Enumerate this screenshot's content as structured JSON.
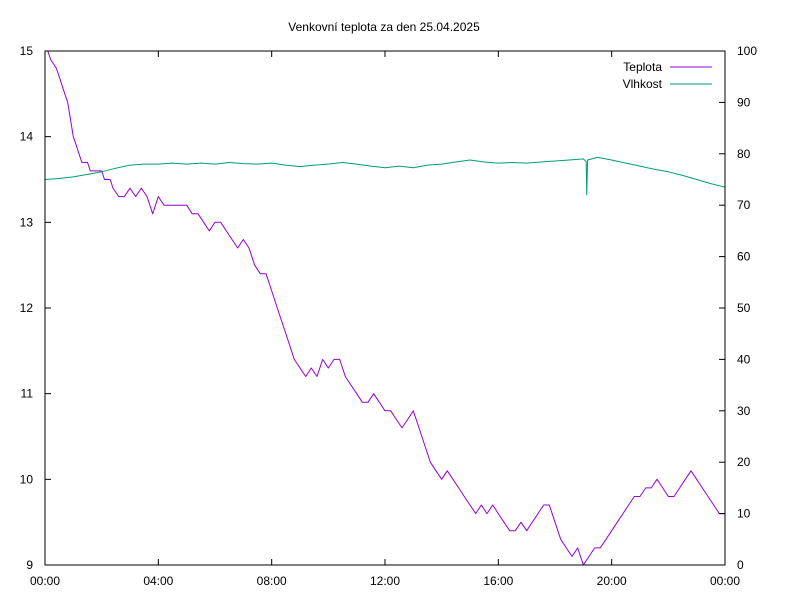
{
  "chart_data": {
    "type": "line",
    "title": "Venkovní teplota za den 25.04.2025",
    "x_ticks": [
      "00:00",
      "04:00",
      "08:00",
      "12:00",
      "16:00",
      "20:00",
      "00:00"
    ],
    "x_range_hours": [
      0,
      24
    ],
    "y_left": {
      "range": [
        9,
        15
      ],
      "ticks": [
        "9",
        "10",
        "11",
        "12",
        "13",
        "14",
        "15"
      ]
    },
    "y_right": {
      "range": [
        0,
        100
      ],
      "ticks": [
        "0",
        "10",
        "20",
        "30",
        "40",
        "50",
        "60",
        "70",
        "80",
        "90",
        "100"
      ]
    },
    "grid": false,
    "legend_position": "top-right",
    "series": [
      {
        "name": "Teplota",
        "axis": "left",
        "color": "#9400d3",
        "points": [
          [
            0.0,
            15.0
          ],
          [
            0.1,
            15.0
          ],
          [
            0.2,
            14.9
          ],
          [
            0.4,
            14.8
          ],
          [
            0.5,
            14.7
          ],
          [
            0.6,
            14.6
          ],
          [
            0.7,
            14.5
          ],
          [
            0.8,
            14.4
          ],
          [
            0.9,
            14.2
          ],
          [
            1.0,
            14.0
          ],
          [
            1.1,
            13.9
          ],
          [
            1.2,
            13.8
          ],
          [
            1.3,
            13.7
          ],
          [
            1.5,
            13.7
          ],
          [
            1.6,
            13.6
          ],
          [
            1.8,
            13.6
          ],
          [
            2.0,
            13.6
          ],
          [
            2.1,
            13.5
          ],
          [
            2.3,
            13.5
          ],
          [
            2.4,
            13.4
          ],
          [
            2.6,
            13.3
          ],
          [
            2.8,
            13.3
          ],
          [
            3.0,
            13.4
          ],
          [
            3.2,
            13.3
          ],
          [
            3.4,
            13.4
          ],
          [
            3.6,
            13.3
          ],
          [
            3.8,
            13.1
          ],
          [
            4.0,
            13.3
          ],
          [
            4.2,
            13.2
          ],
          [
            4.5,
            13.2
          ],
          [
            4.8,
            13.2
          ],
          [
            5.0,
            13.2
          ],
          [
            5.2,
            13.1
          ],
          [
            5.4,
            13.1
          ],
          [
            5.6,
            13.0
          ],
          [
            5.8,
            12.9
          ],
          [
            6.0,
            13.0
          ],
          [
            6.2,
            13.0
          ],
          [
            6.4,
            12.9
          ],
          [
            6.6,
            12.8
          ],
          [
            6.8,
            12.7
          ],
          [
            7.0,
            12.8
          ],
          [
            7.2,
            12.7
          ],
          [
            7.4,
            12.5
          ],
          [
            7.6,
            12.4
          ],
          [
            7.8,
            12.4
          ],
          [
            8.0,
            12.2
          ],
          [
            8.2,
            12.0
          ],
          [
            8.4,
            11.8
          ],
          [
            8.6,
            11.6
          ],
          [
            8.8,
            11.4
          ],
          [
            9.0,
            11.3
          ],
          [
            9.2,
            11.2
          ],
          [
            9.4,
            11.3
          ],
          [
            9.6,
            11.2
          ],
          [
            9.8,
            11.4
          ],
          [
            10.0,
            11.3
          ],
          [
            10.2,
            11.4
          ],
          [
            10.4,
            11.4
          ],
          [
            10.6,
            11.2
          ],
          [
            10.8,
            11.1
          ],
          [
            11.0,
            11.0
          ],
          [
            11.2,
            10.9
          ],
          [
            11.4,
            10.9
          ],
          [
            11.6,
            11.0
          ],
          [
            11.8,
            10.9
          ],
          [
            12.0,
            10.8
          ],
          [
            12.2,
            10.8
          ],
          [
            12.4,
            10.7
          ],
          [
            12.6,
            10.6
          ],
          [
            12.8,
            10.7
          ],
          [
            13.0,
            10.8
          ],
          [
            13.2,
            10.6
          ],
          [
            13.4,
            10.4
          ],
          [
            13.6,
            10.2
          ],
          [
            13.8,
            10.1
          ],
          [
            14.0,
            10.0
          ],
          [
            14.2,
            10.1
          ],
          [
            14.4,
            10.0
          ],
          [
            14.6,
            9.9
          ],
          [
            14.8,
            9.8
          ],
          [
            15.0,
            9.7
          ],
          [
            15.2,
            9.6
          ],
          [
            15.4,
            9.7
          ],
          [
            15.6,
            9.6
          ],
          [
            15.8,
            9.7
          ],
          [
            16.0,
            9.6
          ],
          [
            16.2,
            9.5
          ],
          [
            16.4,
            9.4
          ],
          [
            16.6,
            9.4
          ],
          [
            16.8,
            9.5
          ],
          [
            17.0,
            9.4
          ],
          [
            17.2,
            9.5
          ],
          [
            17.4,
            9.6
          ],
          [
            17.6,
            9.7
          ],
          [
            17.8,
            9.7
          ],
          [
            18.0,
            9.5
          ],
          [
            18.2,
            9.3
          ],
          [
            18.4,
            9.2
          ],
          [
            18.6,
            9.1
          ],
          [
            18.8,
            9.2
          ],
          [
            19.0,
            9.0
          ],
          [
            19.2,
            9.1
          ],
          [
            19.4,
            9.2
          ],
          [
            19.6,
            9.2
          ],
          [
            19.8,
            9.3
          ],
          [
            20.0,
            9.4
          ],
          [
            20.2,
            9.5
          ],
          [
            20.4,
            9.6
          ],
          [
            20.6,
            9.7
          ],
          [
            20.8,
            9.8
          ],
          [
            21.0,
            9.8
          ],
          [
            21.2,
            9.9
          ],
          [
            21.4,
            9.9
          ],
          [
            21.6,
            10.0
          ],
          [
            21.8,
            9.9
          ],
          [
            22.0,
            9.8
          ],
          [
            22.2,
            9.8
          ],
          [
            22.4,
            9.9
          ],
          [
            22.6,
            10.0
          ],
          [
            22.8,
            10.1
          ],
          [
            23.0,
            10.0
          ],
          [
            23.2,
            9.9
          ],
          [
            23.4,
            9.8
          ],
          [
            23.6,
            9.7
          ],
          [
            23.8,
            9.6
          ],
          [
            24.0,
            9.6
          ]
        ]
      },
      {
        "name": "Vlhkost",
        "axis": "right",
        "color": "#009e73",
        "points": [
          [
            0.0,
            75.0
          ],
          [
            0.5,
            75.2
          ],
          [
            1.0,
            75.5
          ],
          [
            1.5,
            76.0
          ],
          [
            2.0,
            76.5
          ],
          [
            2.5,
            77.2
          ],
          [
            3.0,
            77.8
          ],
          [
            3.5,
            78.0
          ],
          [
            4.0,
            78.0
          ],
          [
            4.5,
            78.2
          ],
          [
            5.0,
            78.0
          ],
          [
            5.5,
            78.2
          ],
          [
            6.0,
            78.0
          ],
          [
            6.5,
            78.3
          ],
          [
            7.0,
            78.1
          ],
          [
            7.5,
            78.0
          ],
          [
            8.0,
            78.2
          ],
          [
            8.5,
            77.8
          ],
          [
            9.0,
            77.5
          ],
          [
            9.5,
            77.8
          ],
          [
            10.0,
            78.0
          ],
          [
            10.5,
            78.3
          ],
          [
            11.0,
            78.0
          ],
          [
            11.5,
            77.6
          ],
          [
            12.0,
            77.3
          ],
          [
            12.5,
            77.6
          ],
          [
            13.0,
            77.3
          ],
          [
            13.5,
            77.8
          ],
          [
            14.0,
            78.0
          ],
          [
            14.5,
            78.4
          ],
          [
            15.0,
            78.8
          ],
          [
            15.5,
            78.4
          ],
          [
            16.0,
            78.2
          ],
          [
            16.5,
            78.3
          ],
          [
            17.0,
            78.2
          ],
          [
            17.5,
            78.4
          ],
          [
            18.0,
            78.6
          ],
          [
            18.5,
            78.8
          ],
          [
            19.0,
            79.0
          ],
          [
            19.1,
            78.5
          ],
          [
            19.12,
            72.0
          ],
          [
            19.15,
            78.8
          ],
          [
            19.5,
            79.3
          ],
          [
            20.0,
            78.8
          ],
          [
            20.5,
            78.2
          ],
          [
            21.0,
            77.6
          ],
          [
            21.5,
            77.0
          ],
          [
            22.0,
            76.5
          ],
          [
            22.5,
            75.8
          ],
          [
            23.0,
            75.0
          ],
          [
            23.5,
            74.2
          ],
          [
            24.0,
            73.5
          ]
        ]
      }
    ]
  }
}
